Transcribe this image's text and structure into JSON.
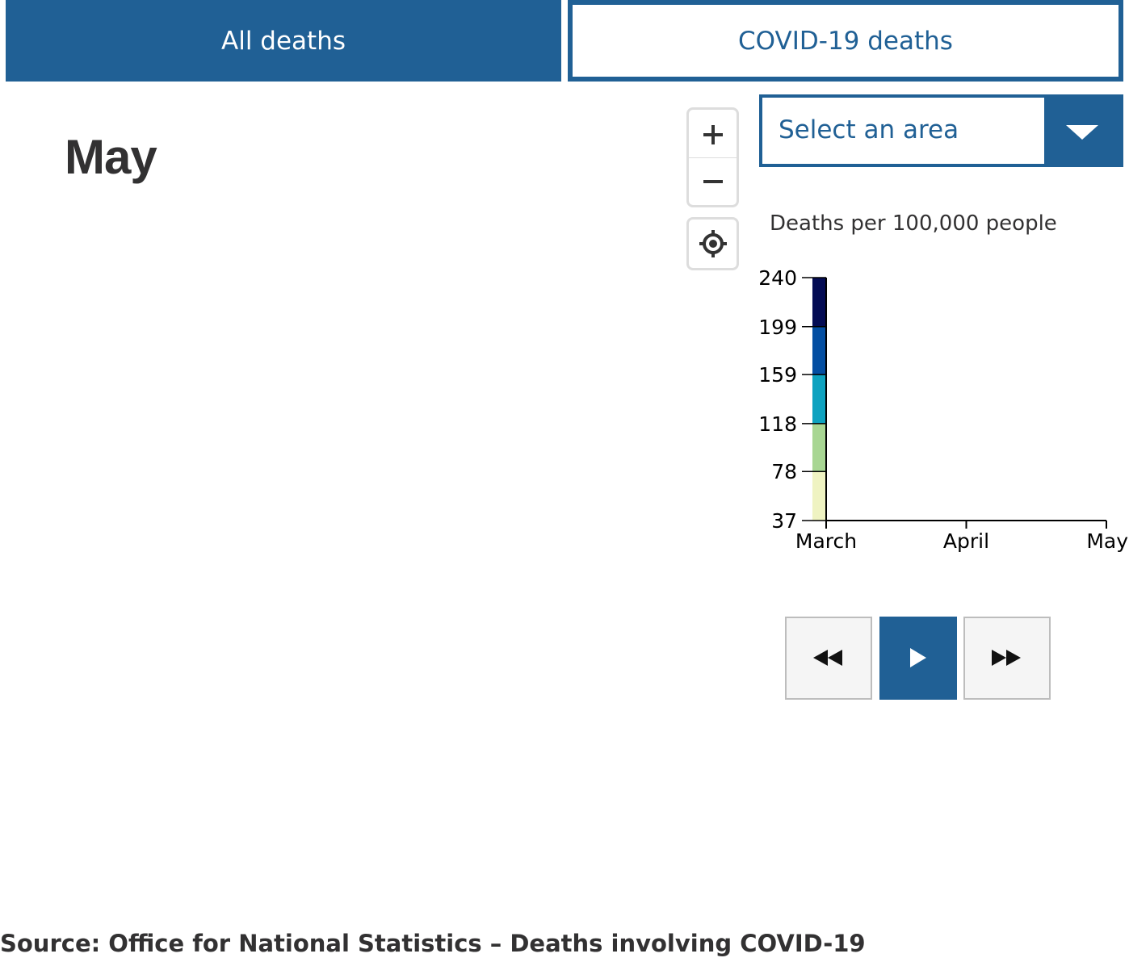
{
  "tabs": [
    {
      "label": "All deaths",
      "selected": true
    },
    {
      "label": "COVID-19 deaths",
      "selected": false
    }
  ],
  "map": {
    "month_title": "May",
    "controls": {
      "zoom_in_icon": "plus-icon",
      "zoom_out_icon": "minus-icon",
      "locate_icon": "target-icon"
    }
  },
  "area_select": {
    "label": "Select an area",
    "arrow_icon": "chevron-down-icon"
  },
  "legend": {
    "title": "Deaths per 100,000 people"
  },
  "chart_data": {
    "type": "line",
    "title": "Deaths per 100,000 people",
    "y_ticks": [
      37,
      78,
      118,
      159,
      199,
      240
    ],
    "ylim": [
      37,
      240
    ],
    "x_ticks": [
      "March",
      "April",
      "May"
    ],
    "color_scale": [
      {
        "from": 37,
        "to": 78,
        "color": "#eff3c2"
      },
      {
        "from": 78,
        "to": 118,
        "color": "#a8d693"
      },
      {
        "from": 118,
        "to": 159,
        "color": "#0ea2c0"
      },
      {
        "from": 159,
        "to": 199,
        "color": "#034ea2"
      },
      {
        "from": 199,
        "to": 240,
        "color": "#040c54"
      }
    ],
    "series": []
  },
  "playback": {
    "rewind_icon": "rewind-icon",
    "play_icon": "play-icon",
    "forward_icon": "fast-forward-icon"
  },
  "source": "Source: Office for National Statistics – Deaths involving COVID-19",
  "colors": {
    "accent": "#206095",
    "text": "#323132",
    "control_border": "#dddddd"
  }
}
